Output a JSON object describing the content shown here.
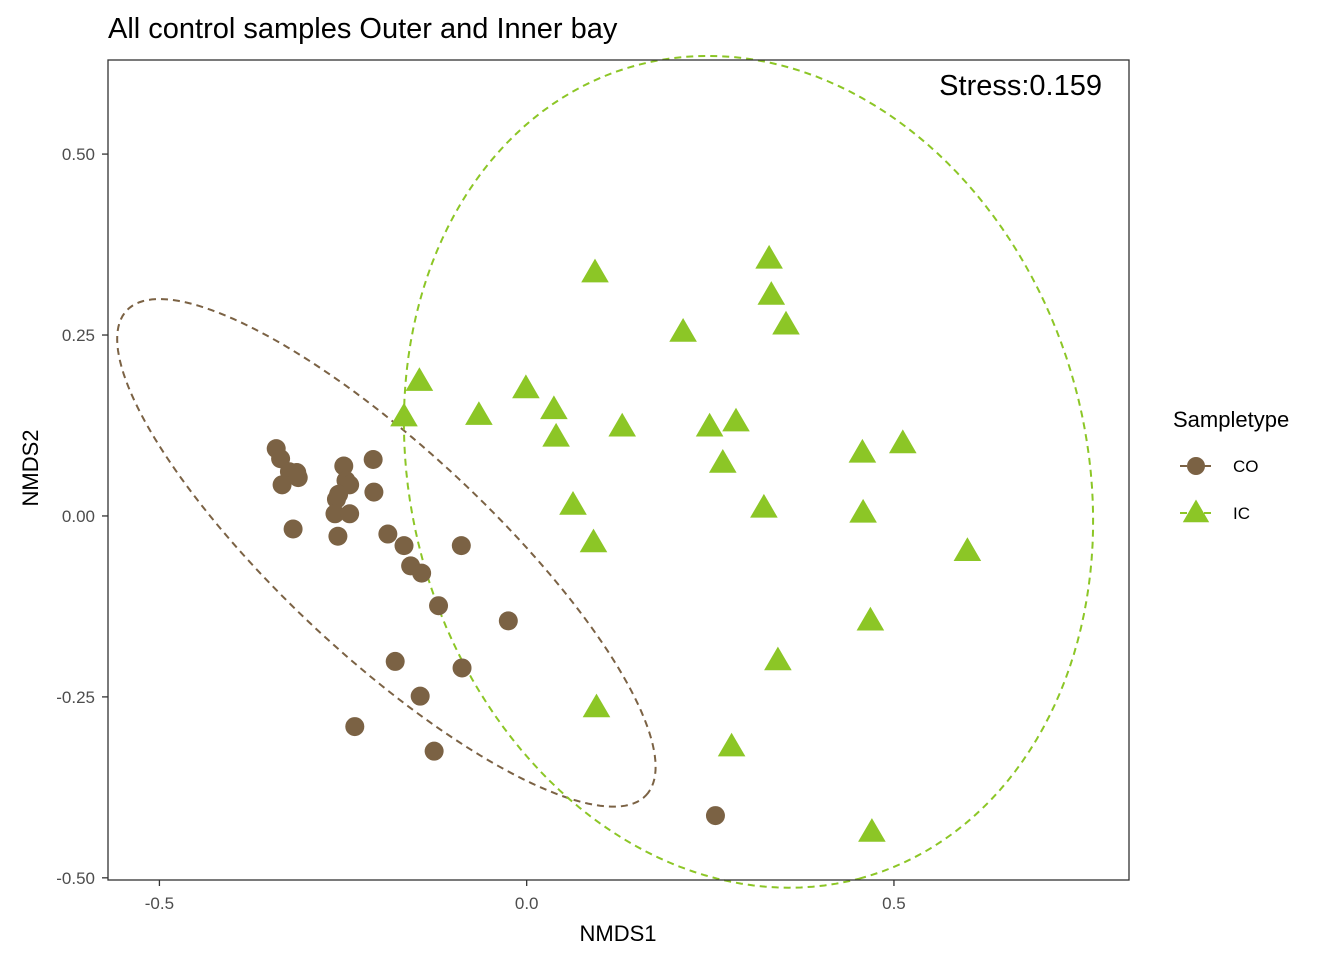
{
  "chart_data": {
    "type": "scatter",
    "title": "All control samples Outer and Inner bay",
    "xlabel": "NMDS1",
    "ylabel": "NMDS2",
    "xlim": [
      -0.57,
      0.82
    ],
    "ylim": [
      -0.503,
      0.63
    ],
    "x_ticks": [
      -0.5,
      0.0,
      0.5
    ],
    "x_tick_labels": [
      "-0.5",
      "0.0",
      "0.5"
    ],
    "y_ticks": [
      -0.5,
      -0.25,
      0.0,
      0.25,
      0.5
    ],
    "y_tick_labels": [
      "-0.50",
      "-0.25",
      "0.00",
      "0.25",
      "0.50"
    ],
    "grid": false,
    "legend_title": "Sampletype",
    "legend_position": "right",
    "annotation": "Stress:0.159",
    "series": [
      {
        "name": "CO",
        "marker": "circle",
        "color": "#7b6244",
        "points": [
          [
            -0.341,
            0.093
          ],
          [
            -0.335,
            0.079
          ],
          [
            -0.323,
            0.061
          ],
          [
            -0.313,
            0.06
          ],
          [
            -0.333,
            0.043
          ],
          [
            -0.311,
            0.053
          ],
          [
            -0.249,
            0.069
          ],
          [
            -0.209,
            0.078
          ],
          [
            -0.246,
            0.049
          ],
          [
            -0.241,
            0.043
          ],
          [
            -0.256,
            0.03
          ],
          [
            -0.259,
            0.023
          ],
          [
            -0.208,
            0.033
          ],
          [
            -0.261,
            0.003
          ],
          [
            -0.241,
            0.003
          ],
          [
            -0.318,
            -0.018
          ],
          [
            -0.257,
            -0.028
          ],
          [
            -0.189,
            -0.025
          ],
          [
            -0.167,
            -0.041
          ],
          [
            -0.158,
            -0.069
          ],
          [
            -0.143,
            -0.079
          ],
          [
            -0.089,
            -0.041
          ],
          [
            -0.12,
            -0.124
          ],
          [
            -0.025,
            -0.145
          ],
          [
            -0.179,
            -0.201
          ],
          [
            -0.088,
            -0.21
          ],
          [
            -0.145,
            -0.249
          ],
          [
            -0.234,
            -0.291
          ],
          [
            -0.126,
            -0.325
          ],
          [
            0.257,
            -0.414
          ]
        ],
        "ellipse": {
          "cx": -0.191,
          "cy": -0.051,
          "rx": 0.487,
          "ry": 0.142,
          "rotation_deg": -43.5
        }
      },
      {
        "name": "IC",
        "marker": "triangle",
        "color": "#8cc626",
        "points": [
          [
            0.093,
            0.336
          ],
          [
            0.33,
            0.355
          ],
          [
            0.333,
            0.305
          ],
          [
            0.353,
            0.264
          ],
          [
            0.213,
            0.254
          ],
          [
            -0.146,
            0.186
          ],
          [
            -0.167,
            0.137
          ],
          [
            -0.065,
            0.139
          ],
          [
            -0.001,
            0.176
          ],
          [
            0.037,
            0.147
          ],
          [
            0.04,
            0.109
          ],
          [
            0.13,
            0.123
          ],
          [
            0.249,
            0.123
          ],
          [
            0.285,
            0.13
          ],
          [
            0.267,
            0.073
          ],
          [
            0.457,
            0.087
          ],
          [
            0.512,
            0.1
          ],
          [
            0.063,
            0.015
          ],
          [
            0.323,
            0.011
          ],
          [
            0.458,
            0.004
          ],
          [
            0.091,
            -0.037
          ],
          [
            0.6,
            -0.049
          ],
          [
            0.468,
            -0.145
          ],
          [
            0.342,
            -0.2
          ],
          [
            0.095,
            -0.265
          ],
          [
            0.279,
            -0.319
          ],
          [
            0.47,
            -0.437
          ]
        ],
        "ellipse": {
          "cx": 0.302,
          "cy": 0.061,
          "rx": 0.582,
          "ry": 0.46,
          "rotation_deg": -75
        }
      }
    ]
  }
}
